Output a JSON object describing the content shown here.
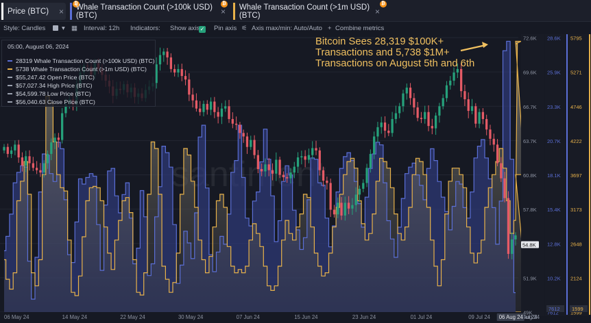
{
  "tabs": [
    {
      "label": "Price (BTC)",
      "color": "#ffffff"
    },
    {
      "label": "Whale Transaction Count (>100k USD) (BTC)",
      "color": "#5b6fd6"
    },
    {
      "label": "Whale Transaction Count (>1m USD) (BTC)",
      "color": "#e8b24a"
    }
  ],
  "tab_close": "×",
  "tab_coin": "₿",
  "toolbar": {
    "style_label": "Style: Candles",
    "interval_label": "Interval: 12h",
    "indicators_label": "Indicators:",
    "show_axis_label": "Show axis",
    "pin_axis_label": "Pin axis",
    "axis_maxmin_label": "Axis max/min: Auto/Auto",
    "combine_label": "Combine metrics",
    "check_mark": "✓"
  },
  "legend": {
    "timestamp": "05:00, August 06, 2024",
    "rows": [
      {
        "text": "28319 Whale Transaction Count (>100k USD) (BTC)",
        "color": "#5b6fd6"
      },
      {
        "text": "5738 Whale Transaction Count (>1m USD) (BTC)",
        "color": "#e8b24a"
      },
      {
        "text": "$55,247.42 Open Price (BTC)",
        "color": "#9aa0ad"
      },
      {
        "text": "$57,027.34 High Price (BTC)",
        "color": "#9aa0ad"
      },
      {
        "text": "$54,599.78 Low Price (BTC)",
        "color": "#9aa0ad"
      },
      {
        "text": "$56,040.63 Close Price (BTC)",
        "color": "#9aa0ad"
      }
    ]
  },
  "annotation": {
    "lines": [
      "Bitcoin Sees 28,319 $100K+",
      "Transactions and 5,738 $1M+",
      "Transactions on August 5th and 6th"
    ],
    "color": "#f0c060"
  },
  "watermark": "santiment",
  "chart_data": {
    "type": "line",
    "x_labels": [
      "06 May 24",
      "14 May 24",
      "22 May 24",
      "30 May 24",
      "07 Jun 24",
      "15 Jun 24",
      "23 Jun 24",
      "01 Jul 24",
      "09 Jul 24",
      "17 Jul 24",
      "25 Jul 24",
      "02 Aug 24"
    ],
    "x_highlight": "06 Aug 24",
    "axes": [
      {
        "name": "price",
        "color": "#aab0bd",
        "ticks": [
          "72.6K",
          "69.6K",
          "66.7K",
          "63.7K",
          "60.8K",
          "57.8K",
          "54.8K",
          "51.9K",
          "49K"
        ],
        "current": "54.8K",
        "range": [
          49000,
          72600
        ]
      },
      {
        "name": "whale_100k",
        "color": "#5b6fd6",
        "ticks": [
          "28.6K",
          "25.9K",
          "23.3K",
          "20.7K",
          "18.1K",
          "15.4K",
          "12.8K",
          "10.2K",
          "7612"
        ],
        "current": "7612",
        "range": [
          7612,
          28600
        ]
      },
      {
        "name": "whale_1m",
        "color": "#e8b24a",
        "ticks": [
          "5795",
          "5271",
          "4746",
          "4222",
          "3697",
          "3173",
          "2648",
          "2124",
          "1599"
        ],
        "current": "1599",
        "range": [
          1599,
          5795
        ]
      }
    ],
    "series": [
      {
        "name": "Whale Transaction Count (>100k USD) (BTC)",
        "color": "#5b6fd6",
        "values": [
          12300,
          13400,
          15100,
          17500,
          18300,
          18800,
          18700,
          11500,
          8600,
          11800,
          16800,
          19700,
          19600,
          18200,
          17600,
          20600,
          20100,
          16200,
          12000,
          11400,
          14500,
          17800,
          17400,
          17900,
          18200,
          18000,
          14300,
          10800,
          15800,
          18400,
          18600,
          16500,
          15200,
          16600,
          17500,
          14800,
          11300,
          12500,
          16900,
          14900,
          10400,
          11300,
          14900,
          17200,
          20300,
          19800,
          18700,
          14300,
          9800,
          11200,
          13800,
          12900,
          11700,
          15200,
          21000,
          21900,
          17100,
          12000,
          10700,
          12200,
          13400,
          12800,
          15100,
          18300,
          19200,
          21900,
          17900,
          14800,
          14200,
          16100,
          16800,
          19100,
          21600,
          19300,
          16500,
          13000,
          14600,
          17600,
          18800,
          18100,
          15400,
          13900,
          12400,
          13300,
          16200,
          19400,
          19300,
          17500,
          17300,
          14800,
          12600,
          14200,
          16800,
          18600,
          19500,
          19800,
          19200,
          17600,
          15900,
          14100,
          16400,
          18600,
          19700,
          20600,
          20400,
          17500,
          14600,
          13200,
          11800,
          14100,
          16300,
          18200,
          18700,
          19000,
          18100,
          17300,
          16200,
          18600,
          20100,
          19200,
          17600,
          16400,
          15300,
          13900,
          15700,
          17600,
          17400,
          15600,
          14800,
          16800,
          19400,
          20300,
          20800,
          19400,
          17800,
          15600,
          12800,
          16100,
          27600,
          28319,
          19300,
          9100
        ]
      },
      {
        "name": "Whale Transaction Count (>1m USD) (BTC)",
        "color": "#e8b24a",
        "values": [
          2400,
          2100,
          1950,
          2200,
          3300,
          3600,
          3900,
          3400,
          2200,
          2000,
          2400,
          3700,
          4900,
          4800,
          4200,
          3700,
          3500,
          3450,
          2700,
          1900,
          1850,
          2150,
          2750,
          3300,
          3500,
          3520,
          3500,
          3300,
          2900,
          2500,
          2250,
          2700,
          3000,
          3300,
          3350,
          3120,
          2400,
          1900,
          1860,
          2200,
          3400,
          4200,
          4100,
          3400,
          2300,
          2100,
          1900,
          2050,
          2500,
          3400,
          4100,
          4000,
          3600,
          3200,
          2700,
          2400,
          2200,
          2450,
          2900,
          3300,
          3400,
          3200,
          2600,
          2300,
          2200,
          2250,
          2200,
          2300,
          2700,
          2950,
          2800,
          2600,
          2300,
          2000,
          1930,
          2000,
          2300,
          2700,
          3000,
          2800,
          2700,
          2900,
          3100,
          3400,
          3350,
          2900,
          2500,
          2300,
          2150,
          2200,
          2500,
          2900,
          3200,
          3400,
          3700,
          3900,
          3950,
          3800,
          3300,
          2950,
          2700,
          2800,
          3100,
          3600,
          3950,
          3900,
          3800,
          3500,
          3100,
          2800,
          2700,
          2900,
          3200,
          3700,
          3950,
          3900,
          3700,
          3200,
          2700,
          2300,
          2000,
          2400,
          3100,
          3600,
          3800,
          3800,
          3700,
          3500,
          2900,
          2500,
          2350,
          2500,
          2700,
          3200,
          3500,
          3700,
          3900,
          4100,
          3800,
          3300,
          2800,
          3000,
          5700,
          5738,
          3700,
          1599
        ]
      },
      {
        "name": "Price (BTC)",
        "type": "candle",
        "close": [
          63200,
          62600,
          62900,
          63400,
          62300,
          61600,
          62400,
          61800,
          61400,
          61200,
          61000,
          61800,
          62600,
          63600,
          64000,
          63800,
          66100,
          66900,
          67300,
          66800,
          68600,
          69600,
          70200,
          70100,
          69400,
          70400,
          69900,
          69400,
          68900,
          68400,
          67600,
          68200,
          68100,
          68600,
          67900,
          68300,
          67500,
          67800,
          67400,
          68100,
          68400,
          68700,
          70300,
          71100,
          71400,
          70900,
          69900,
          69600,
          69900,
          69300,
          69000,
          67700,
          67200,
          66500,
          66200,
          66900,
          66400,
          67100,
          66200,
          65800,
          66500,
          66700,
          65600,
          65200,
          65100,
          64400,
          64100,
          63200,
          63800,
          62500,
          61300,
          61100,
          61700,
          61200,
          60900,
          62100,
          60800,
          60600,
          60500,
          61000,
          61500,
          62300,
          62400,
          62100,
          62500,
          63100,
          62900,
          61200,
          60300,
          60100,
          57800,
          57400,
          58400,
          57300,
          58400,
          57900,
          58200,
          59100,
          59600,
          60100,
          61400,
          62600,
          64100,
          64900,
          65300,
          64600,
          64400,
          65600,
          66100,
          66700,
          67800,
          68300,
          67400,
          66600,
          65700,
          65600,
          66200,
          65000,
          64800,
          65900,
          66700,
          67400,
          68500,
          68900,
          69600,
          69900,
          68000,
          67300,
          66300,
          66700,
          65200,
          66200,
          65600,
          64700,
          63900,
          63400,
          61800,
          60500,
          58800,
          54000,
          55247,
          55600
        ]
      }
    ]
  }
}
